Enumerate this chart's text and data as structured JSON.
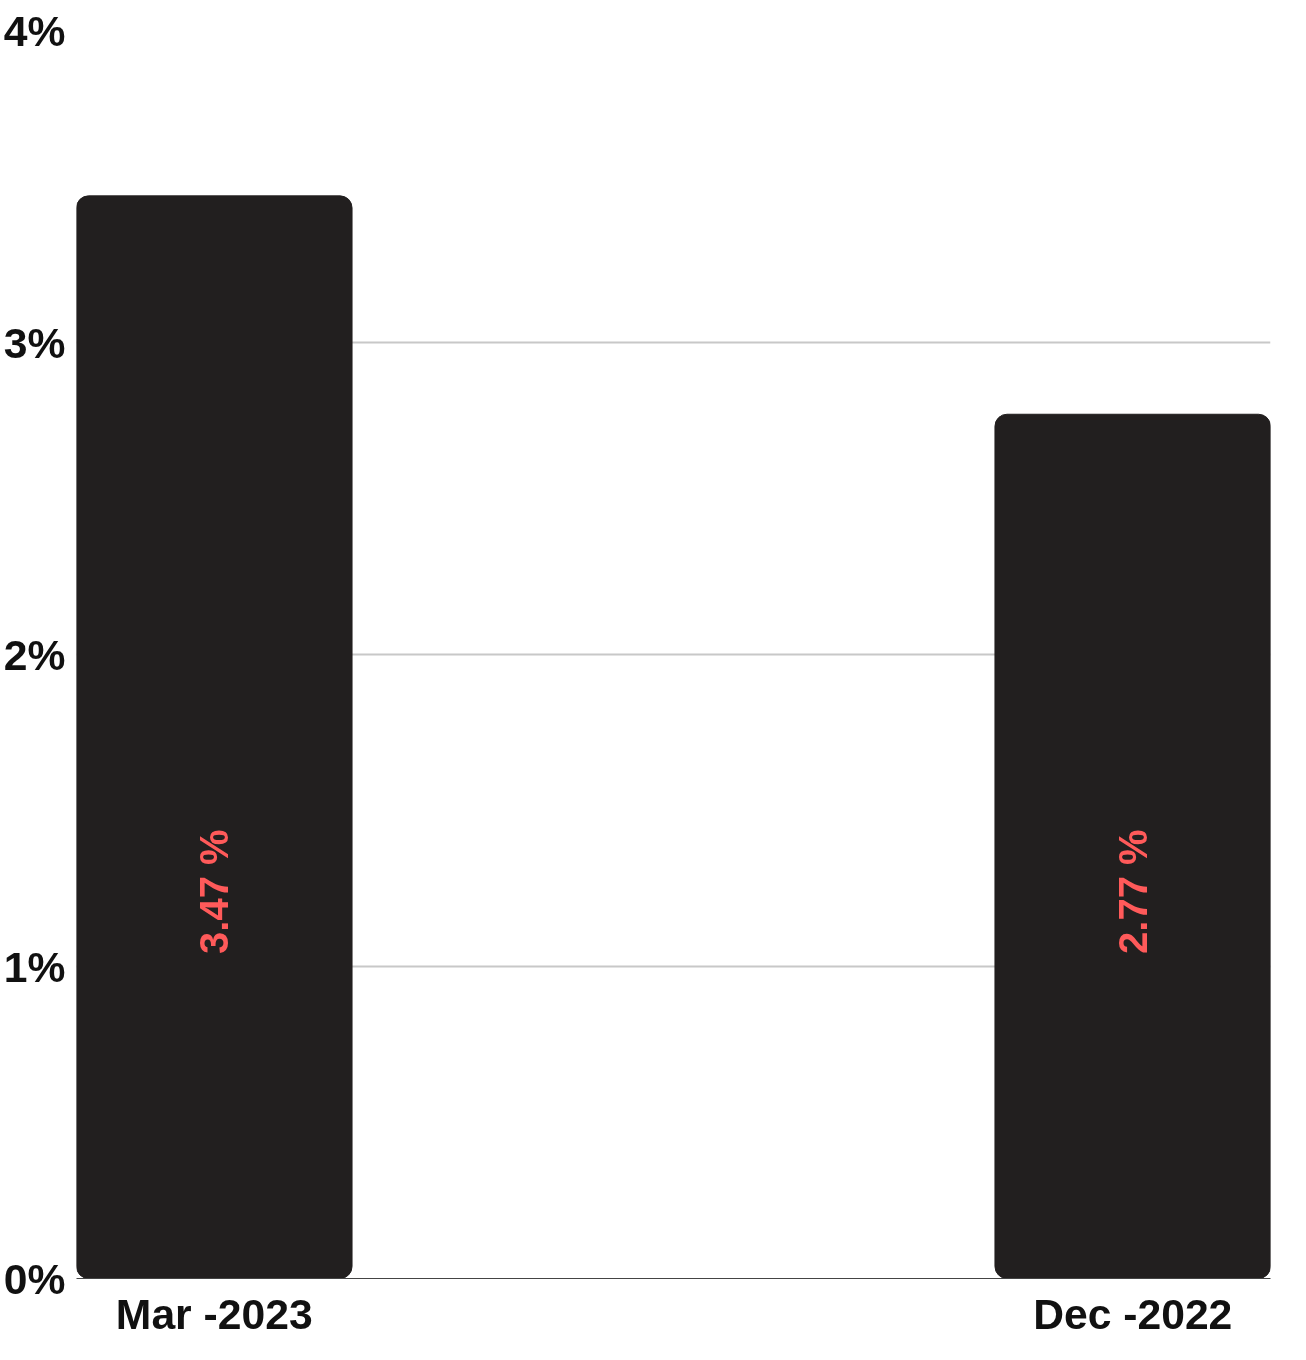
{
  "chart_data": {
    "type": "bar",
    "categories": [
      "Mar -2023",
      "Dec -2022"
    ],
    "values": [
      3.47,
      2.77
    ],
    "color": "#221f1f",
    "value_labels": [
      "3.47 %",
      "2.77 %"
    ],
    "ylim": [
      0,
      4
    ],
    "yticks": [
      {
        "value": 0,
        "label": "0%"
      },
      {
        "value": 1,
        "label": "1%"
      },
      {
        "value": 2,
        "label": "2%"
      },
      {
        "value": 3,
        "label": "3%"
      },
      {
        "value": 4,
        "label": "4%"
      }
    ],
    "grid": "y"
  }
}
